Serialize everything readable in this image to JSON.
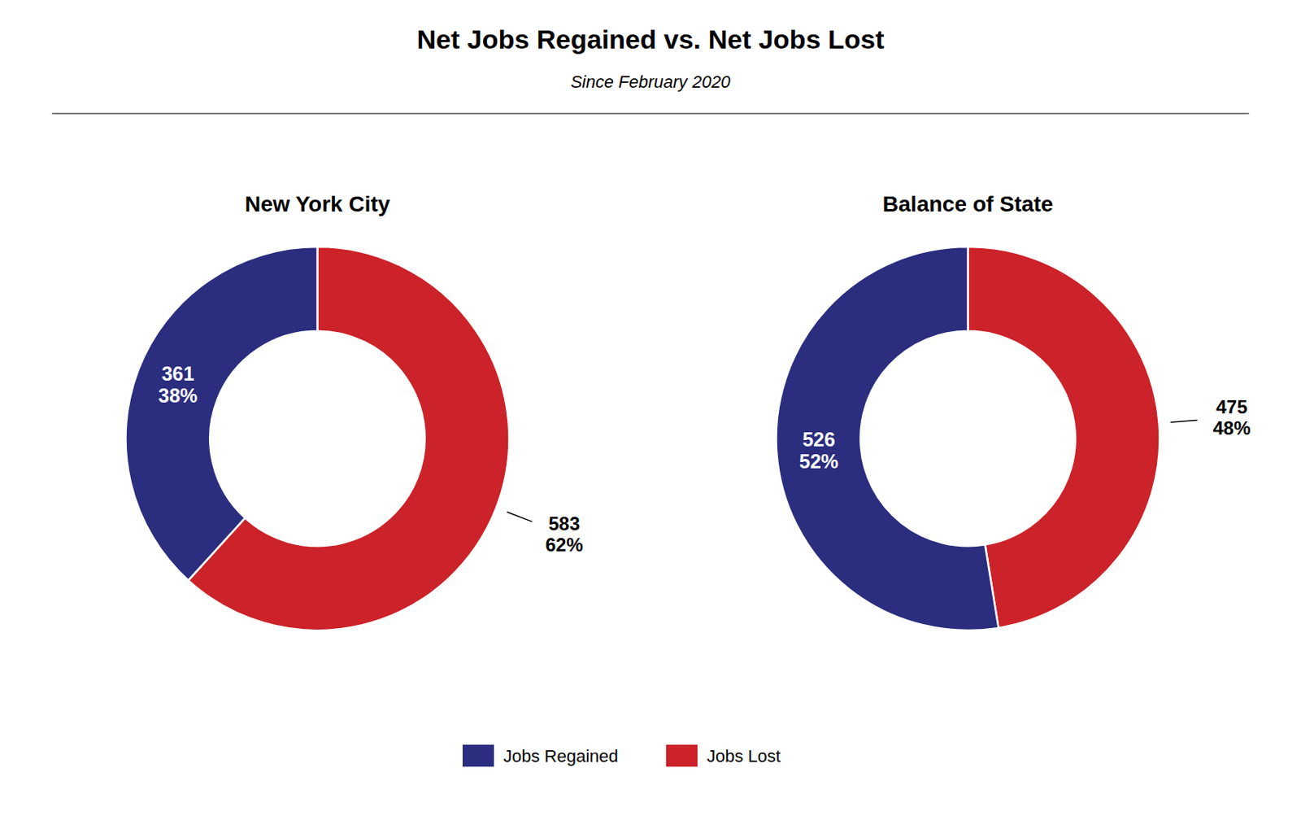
{
  "title": "Net Jobs Regained vs. Net Jobs Lost",
  "subtitle": "Since February 2020",
  "legend": "bottom",
  "chart_data": [
    {
      "type": "donut",
      "title": "New York City",
      "categories": [
        "Jobs Lost",
        "Jobs Regained"
      ],
      "values": [
        583,
        361
      ],
      "shares": [
        62,
        38
      ],
      "share_labels": [
        "62%",
        "38%"
      ],
      "colors": [
        "#cc2229",
        "#2b2d7e"
      ],
      "data_labels": true
    },
    {
      "type": "donut",
      "title": "Balance of State",
      "categories": [
        "Jobs Lost",
        "Jobs Regained"
      ],
      "values": [
        475,
        526
      ],
      "shares": [
        48,
        52
      ],
      "share_labels": [
        "48%",
        "52%"
      ],
      "colors": [
        "#cc2229",
        "#2b2d7e"
      ],
      "data_labels": true
    }
  ]
}
